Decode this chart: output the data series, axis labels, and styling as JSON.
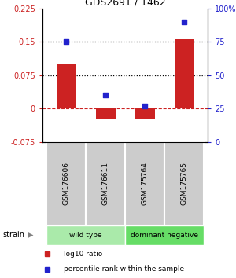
{
  "title": "GDS2691 / 1462",
  "samples": [
    "GSM176606",
    "GSM176611",
    "GSM175764",
    "GSM175765"
  ],
  "log10_ratio": [
    0.1,
    -0.025,
    -0.025,
    0.155
  ],
  "percentile_rank": [
    75,
    35,
    27,
    90
  ],
  "bar_color": "#cc2222",
  "dot_color": "#2222cc",
  "ylim_left": [
    -0.075,
    0.225
  ],
  "ylim_right": [
    0,
    100
  ],
  "yticks_left": [
    -0.075,
    0,
    0.075,
    0.15,
    0.225
  ],
  "yticks_right": [
    0,
    25,
    50,
    75,
    100
  ],
  "ytick_labels_left": [
    "-0.075",
    "0",
    "0.075",
    "0.15",
    "0.225"
  ],
  "ytick_labels_right": [
    "0",
    "25",
    "50",
    "75",
    "100%"
  ],
  "hlines_dotted": [
    0.075,
    0.15
  ],
  "hline_dashed_color": "#cc2222",
  "groups": [
    {
      "label": "wild type",
      "indices": [
        0,
        1
      ],
      "color": "#aaeaaa"
    },
    {
      "label": "dominant negative",
      "indices": [
        2,
        3
      ],
      "color": "#66dd66"
    }
  ],
  "sample_box_color": "#cccccc",
  "strain_label": "strain",
  "legend_items": [
    {
      "color": "#cc2222",
      "label": "log10 ratio"
    },
    {
      "color": "#2222cc",
      "label": "percentile rank within the sample"
    }
  ],
  "background_color": "#ffffff"
}
